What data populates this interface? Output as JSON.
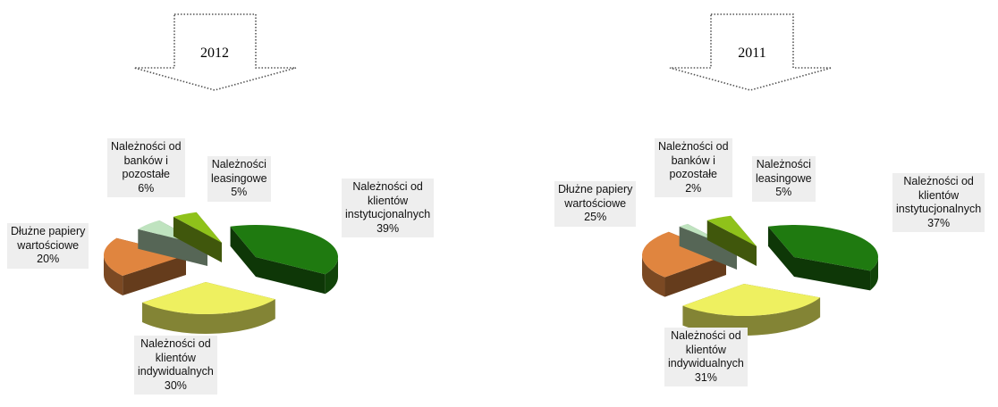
{
  "chart_data": [
    {
      "type": "pie",
      "title": "2012",
      "slices": [
        {
          "label": "Należności od klientów instytucjonalnych",
          "lines": [
            "Należności od",
            "klientów",
            "instytucjonalnych"
          ],
          "value": 39,
          "value_label": "39%",
          "color": "#1f7a10"
        },
        {
          "label": "Należności od klientów indywidualnych",
          "lines": [
            "Należności od",
            "klientów",
            "indywidualnych"
          ],
          "value": 30,
          "value_label": "30%",
          "color": "#eef060"
        },
        {
          "label": "Dłużne papiery wartościowe",
          "lines": [
            "Dłużne papiery",
            "wartościowe"
          ],
          "value": 20,
          "value_label": "20%",
          "color": "#e0853f"
        },
        {
          "label": "Należności od banków i pozostałe",
          "lines": [
            "Należności od",
            "banków i",
            "pozostałe"
          ],
          "value": 6,
          "value_label": "6%",
          "color": "#bfe3bf"
        },
        {
          "label": "Należności leasingowe",
          "lines": [
            "Należności",
            "leasingowe"
          ],
          "value": 5,
          "value_label": "5%",
          "color": "#8fc21a"
        }
      ]
    },
    {
      "type": "pie",
      "title": "2011",
      "slices": [
        {
          "label": "Należności od klientów instytucjonalnych",
          "lines": [
            "Należności od",
            "klientów",
            "instytucjonalnych"
          ],
          "value": 37,
          "value_label": "37%",
          "color": "#1f7a10"
        },
        {
          "label": "Należności od klientów indywidualnych",
          "lines": [
            "Należności od",
            "klientów",
            "indywidualnych"
          ],
          "value": 31,
          "value_label": "31%",
          "color": "#eef060"
        },
        {
          "label": "Dłużne papiery wartościowe",
          "lines": [
            "Dłużne papiery",
            "wartościowe"
          ],
          "value": 25,
          "value_label": "25%",
          "color": "#e0853f"
        },
        {
          "label": "Należności od banków i pozostałe",
          "lines": [
            "Należności od",
            "banków i",
            "pozostałe"
          ],
          "value": 2,
          "value_label": "2%",
          "color": "#bfe3bf"
        },
        {
          "label": "Należności leasingowe",
          "lines": [
            "Należności",
            "leasingowe"
          ],
          "value": 5,
          "value_label": "5%",
          "color": "#8fc21a"
        }
      ]
    }
  ]
}
